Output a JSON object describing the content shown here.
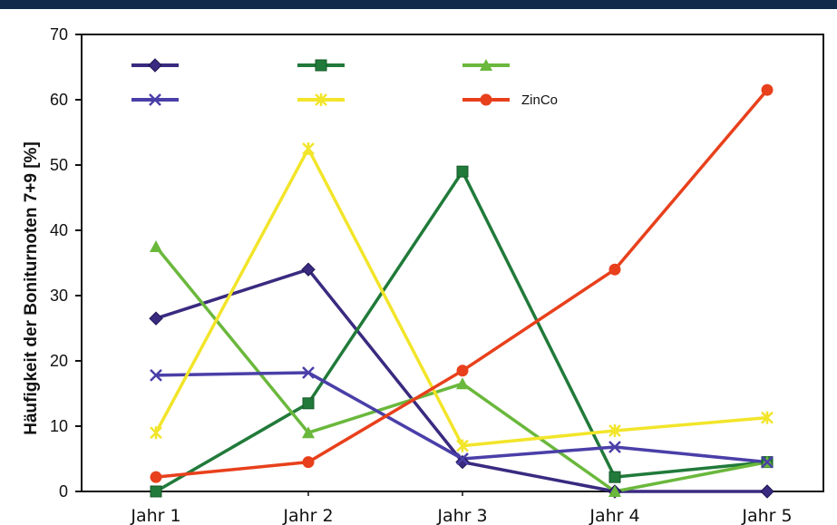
{
  "chart_data": {
    "type": "line",
    "title": "",
    "xlabel": "",
    "ylabel": "Häufigkeit der Boniturnoten 7+9 [%]",
    "ylim": [
      0,
      70
    ],
    "yticks": [
      "0",
      "10",
      "20",
      "30",
      "40",
      "50",
      "60",
      "70"
    ],
    "categories": [
      "Jahr 1",
      "Jahr 2",
      "Jahr 3",
      "Jahr 4",
      "Jahr 5"
    ],
    "grid": false,
    "legend_position": "top-left",
    "series": [
      {
        "name": "",
        "color": "#3a2a80",
        "marker": "diamond",
        "values": [
          26.5,
          34,
          4.5,
          0,
          0
        ]
      },
      {
        "name": "",
        "color": "#217a3a",
        "marker": "square",
        "values": [
          0,
          13.5,
          49,
          2.2,
          4.5
        ]
      },
      {
        "name": "",
        "color": "#6ab83c",
        "marker": "triangle",
        "values": [
          37.5,
          9,
          16.5,
          0,
          4.5
        ]
      },
      {
        "name": "",
        "color": "#4a3fa8",
        "marker": "x",
        "values": [
          17.8,
          18.2,
          5,
          6.8,
          4.5
        ]
      },
      {
        "name": "",
        "color": "#f2e52a",
        "marker": "star",
        "values": [
          9,
          52.5,
          7,
          9.3,
          11.3
        ]
      },
      {
        "name": "ZinCo",
        "color": "#e8401c",
        "marker": "circle",
        "values": [
          2.2,
          4.5,
          18.5,
          34,
          61.5
        ]
      }
    ]
  }
}
